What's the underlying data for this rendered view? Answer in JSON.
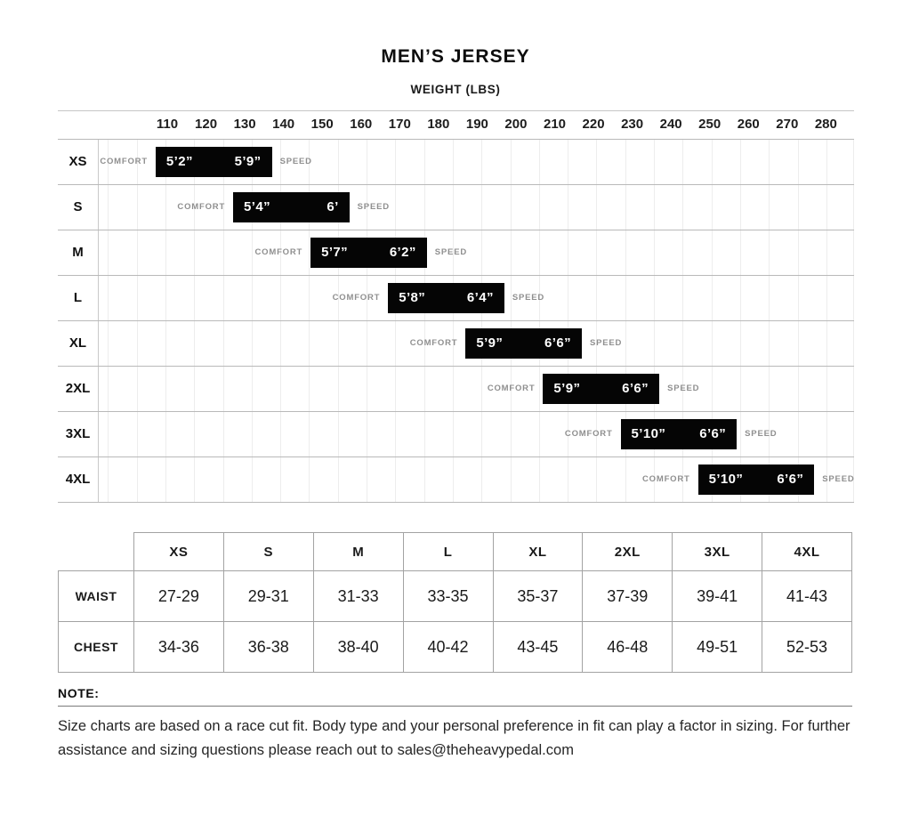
{
  "chart_data": [
    {
      "type": "bar",
      "orientation": "horizontal-range",
      "title": "MEN’S JERSEY",
      "xlabel": "WEIGHT (LBS)",
      "x_ticks": [
        110,
        120,
        130,
        140,
        150,
        160,
        170,
        180,
        190,
        200,
        210,
        220,
        230,
        240,
        250,
        260,
        270,
        280
      ],
      "xlim": [
        92,
        287
      ],
      "grid": true,
      "bar_color": "#050505",
      "side_label_left": "COMFORT",
      "side_label_right": "SPEED",
      "categories": [
        "XS",
        "S",
        "M",
        "L",
        "XL",
        "2XL",
        "3XL",
        "4XL"
      ],
      "rows": [
        {
          "size": "XS",
          "weight_min_lbs": 107,
          "weight_max_lbs": 137,
          "comfort_height": "5’2”",
          "speed_height": "5’9”"
        },
        {
          "size": "S",
          "weight_min_lbs": 127,
          "weight_max_lbs": 157,
          "comfort_height": "5’4”",
          "speed_height": "6’"
        },
        {
          "size": "M",
          "weight_min_lbs": 147,
          "weight_max_lbs": 177,
          "comfort_height": "5’7”",
          "speed_height": "6’2”"
        },
        {
          "size": "L",
          "weight_min_lbs": 167,
          "weight_max_lbs": 197,
          "comfort_height": "5’8”",
          "speed_height": "6’4”"
        },
        {
          "size": "XL",
          "weight_min_lbs": 187,
          "weight_max_lbs": 217,
          "comfort_height": "5’9”",
          "speed_height": "6’6”"
        },
        {
          "size": "2XL",
          "weight_min_lbs": 207,
          "weight_max_lbs": 237,
          "comfort_height": "5’9”",
          "speed_height": "6’6”"
        },
        {
          "size": "3XL",
          "weight_min_lbs": 227,
          "weight_max_lbs": 257,
          "comfort_height": "5’10”",
          "speed_height": "6’6”"
        },
        {
          "size": "4XL",
          "weight_min_lbs": 247,
          "weight_max_lbs": 277,
          "comfort_height": "5’10”",
          "speed_height": "6’6”"
        }
      ]
    },
    {
      "type": "table",
      "col_headers": [
        "XS",
        "S",
        "M",
        "L",
        "XL",
        "2XL",
        "3XL",
        "4XL"
      ],
      "rows": [
        {
          "label": "WAIST",
          "values": [
            "27-29",
            "29-31",
            "31-33",
            "33-35",
            "35-37",
            "37-39",
            "39-41",
            "41-43"
          ]
        },
        {
          "label": "CHEST",
          "values": [
            "34-36",
            "36-38",
            "38-40",
            "40-42",
            "43-45",
            "46-48",
            "49-51",
            "52-53"
          ]
        }
      ]
    }
  ],
  "note": {
    "heading": "NOTE:",
    "text": "Size charts are based on a race cut fit. Body type and your personal preference in fit can play a factor in sizing. For further assistance and sizing questions please reach out to sales@theheavypedal.com"
  }
}
